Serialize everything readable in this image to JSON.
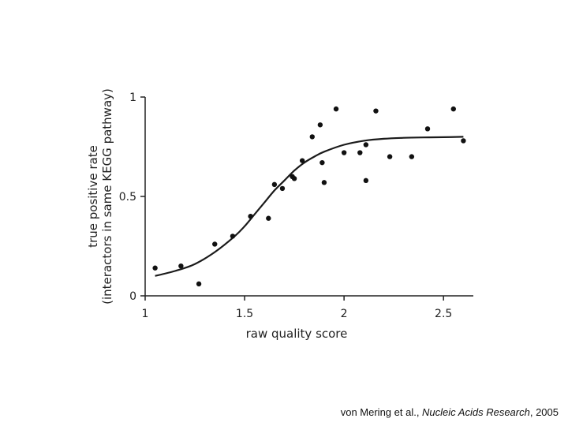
{
  "chart_data": {
    "type": "scatter",
    "xlabel": "raw quality score",
    "ylabel_line1": "true positive rate",
    "ylabel_line2": "(interactors in same KEGG pathway)",
    "xlim": [
      1,
      2.65
    ],
    "ylim": [
      0,
      1
    ],
    "x_ticks": [
      {
        "value": 1,
        "label": "1"
      },
      {
        "value": 1.5,
        "label": "1.5"
      },
      {
        "value": 2,
        "label": "2"
      },
      {
        "value": 2.5,
        "label": "2.5"
      }
    ],
    "y_ticks": [
      {
        "value": 0,
        "label": "0"
      },
      {
        "value": 0.5,
        "label": "0.5"
      },
      {
        "value": 1,
        "label": "1"
      }
    ],
    "grid": false,
    "series": [
      {
        "kind": "points",
        "x": [
          1.05,
          1.18,
          1.27,
          1.35,
          1.44,
          1.53,
          1.62,
          1.65,
          1.69,
          1.74,
          1.75,
          1.79,
          1.84,
          1.88,
          1.89,
          1.9,
          1.96,
          2.0,
          2.08,
          2.11,
          2.11,
          2.16,
          2.23,
          2.34,
          2.42,
          2.55,
          2.6
        ],
        "y": [
          0.14,
          0.15,
          0.06,
          0.26,
          0.3,
          0.4,
          0.39,
          0.56,
          0.54,
          0.6,
          0.59,
          0.68,
          0.8,
          0.86,
          0.67,
          0.57,
          0.94,
          0.72,
          0.72,
          0.76,
          0.58,
          0.93,
          0.7,
          0.7,
          0.84,
          0.94,
          0.78
        ]
      },
      {
        "kind": "fit-line",
        "x": [
          1.05,
          1.15,
          1.25,
          1.35,
          1.45,
          1.5,
          1.55,
          1.6,
          1.65,
          1.7,
          1.75,
          1.8,
          1.85,
          1.9,
          2.0,
          2.1,
          2.2,
          2.3,
          2.4,
          2.5,
          2.6
        ],
        "y": [
          0.1,
          0.125,
          0.16,
          0.22,
          0.3,
          0.35,
          0.41,
          0.47,
          0.53,
          0.58,
          0.63,
          0.67,
          0.7,
          0.725,
          0.76,
          0.78,
          0.79,
          0.795,
          0.797,
          0.798,
          0.8
        ]
      }
    ]
  },
  "citation": {
    "authors": "von Mering et al., ",
    "journal": "Nucleic Acids Research",
    "year": ", 2005"
  }
}
